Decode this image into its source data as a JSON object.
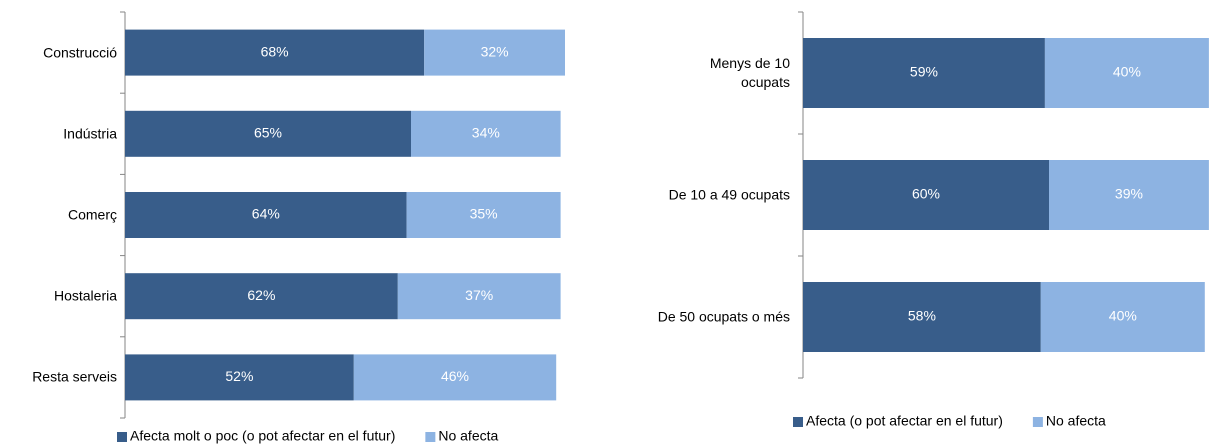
{
  "chart_data": [
    {
      "type": "stacked-bar-horizontal",
      "categories": [
        "Construcció",
        "Indústria",
        "Comerç",
        "Hostaleria",
        "Resta serveis"
      ],
      "xlim": [
        0,
        100
      ],
      "series": [
        {
          "name": "Afecta molt o poc (o pot afectar en el futur)",
          "color": "#385d8a",
          "values": [
            68,
            65,
            64,
            62,
            52
          ],
          "value_labels": [
            "68%",
            "65%",
            "64%",
            "62%",
            "52%"
          ]
        },
        {
          "name": "No afecta",
          "color": "#8db3e2",
          "values": [
            32,
            34,
            35,
            37,
            46
          ],
          "value_labels": [
            "32%",
            "34%",
            "35%",
            "37%",
            "46%"
          ]
        }
      ],
      "legend": "bottom"
    },
    {
      "type": "stacked-bar-horizontal",
      "categories": [
        "Menys de 10\nocupats",
        "De 10 a 49 ocupats",
        "De 50 ocupats o més"
      ],
      "xlim": [
        0,
        100
      ],
      "series": [
        {
          "name": "Afecta (o pot afectar en el futur)",
          "color": "#385d8a",
          "values": [
            59,
            60,
            58
          ],
          "value_labels": [
            "59%",
            "60%",
            "58%"
          ]
        },
        {
          "name": "No afecta",
          "color": "#8db3e2",
          "values": [
            40,
            39,
            40
          ],
          "value_labels": [
            "40%",
            "39%",
            "40%"
          ]
        }
      ],
      "legend": "bottom"
    }
  ]
}
